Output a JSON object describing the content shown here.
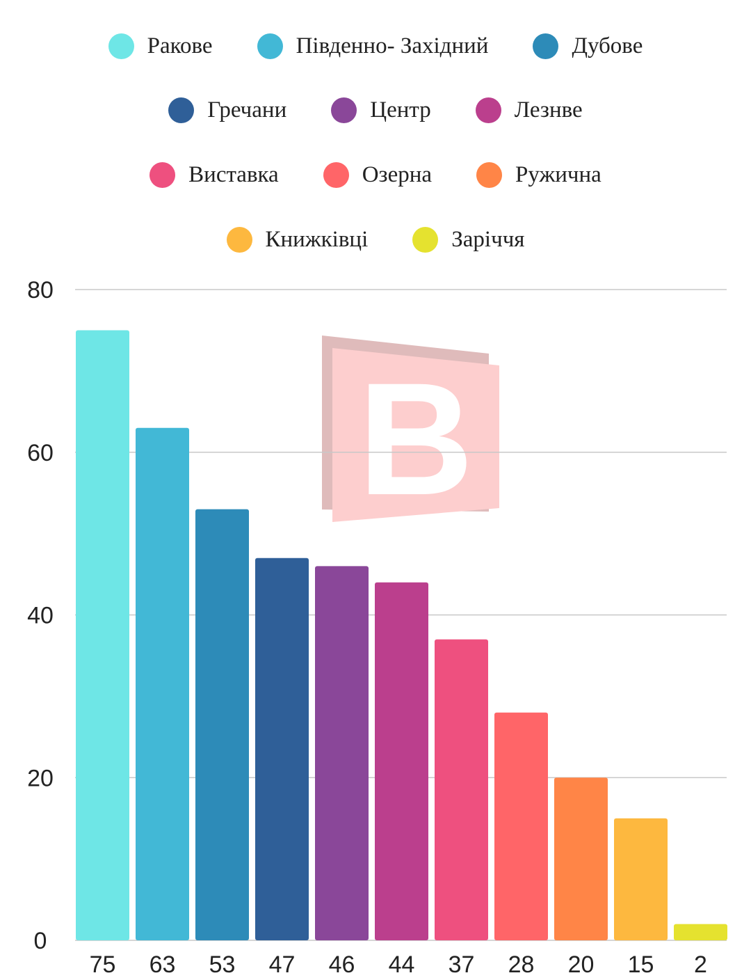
{
  "chart_data": {
    "type": "bar",
    "categories": [
      "Ракове",
      "Південно- Західний",
      "Дубове",
      "Гречани",
      "Центр",
      "Лезнве",
      "Виставка",
      "Озерна",
      "Ружична",
      "Книжківці",
      "Заріччя"
    ],
    "values": [
      75,
      63,
      53,
      47,
      46,
      44,
      37,
      28,
      20,
      15,
      2
    ],
    "x_tick_labels": [
      "75",
      "63",
      "53",
      "47",
      "46",
      "44",
      "37",
      "28",
      "20",
      "15",
      "2"
    ],
    "colors": [
      "#6ee6e6",
      "#42b8d6",
      "#2d8bb8",
      "#2f5f98",
      "#8a4799",
      "#bb3f8d",
      "#ee507f",
      "#ff6568",
      "#ff8547",
      "#fdb83f",
      "#e5e22f"
    ],
    "ylim": [
      0,
      80
    ],
    "y_ticks": [
      0,
      20,
      40,
      60,
      80
    ],
    "grid": true,
    "legend_position": "top",
    "title": "",
    "xlabel": "",
    "ylabel": ""
  }
}
